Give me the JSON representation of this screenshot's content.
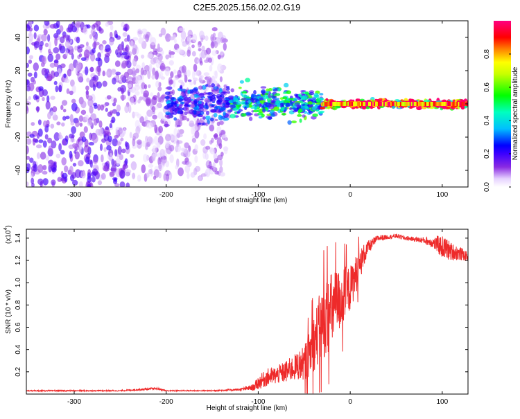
{
  "title": "C2E5.2025.156.02.02.G19",
  "chart_data": [
    {
      "type": "heatmap",
      "xlabel": "Height of straight line (km)",
      "ylabel": "Frequency (Hz)",
      "xlim": [
        -352,
        128
      ],
      "ylim": [
        -50,
        50
      ],
      "xticks": [
        -300,
        -200,
        -100,
        0,
        100
      ],
      "yticks": [
        -40,
        -20,
        0,
        20,
        40
      ],
      "xtick_labels": [
        "-300",
        "-200",
        "-100",
        "0",
        "100"
      ],
      "ytick_labels": [
        "-40",
        "-20",
        "0",
        "20",
        "40"
      ],
      "colorbar": {
        "label": "Normalized spectral amplitude",
        "range": [
          0,
          1
        ],
        "ticks": [
          0.0,
          0.2,
          0.4,
          0.6,
          0.8
        ],
        "tick_labels": [
          "0.0",
          "0.2",
          "0.4",
          "0.6",
          "0.8"
        ],
        "colors": [
          "#ffffff",
          "#e6d2ff",
          "#8a2be2",
          "#3c00ff",
          "#0000ff",
          "#00bfff",
          "#00ffbf",
          "#00ff00",
          "#c8ff00",
          "#ffff00",
          "#ff8000",
          "#ff0000",
          "#ff0080",
          "#ff0060"
        ]
      },
      "description_regions": [
        {
          "x_range": [
            -352,
            -240
          ],
          "spread_hz": 50,
          "amplitude": 0.18
        },
        {
          "x_range": [
            -240,
            -135
          ],
          "spread_hz": 45,
          "amplitude": 0.12
        },
        {
          "x_range": [
            -200,
            -130
          ],
          "spread_hz": 10,
          "amplitude": 0.3
        },
        {
          "x_range": [
            -130,
            -30
          ],
          "spread_hz": 8,
          "amplitude": 0.45
        },
        {
          "x_range": [
            -30,
            128
          ],
          "spread_hz": 2,
          "amplitude": 0.9
        }
      ]
    },
    {
      "type": "line",
      "xlabel": "Height of straight line (km)",
      "ylabel": "SNR (10 * v/v)",
      "yscale_label": "(x10",
      "yscale_exp": "4",
      "xlim": [
        -352,
        128
      ],
      "ylim": [
        0,
        1.48
      ],
      "xticks": [
        -300,
        -200,
        -100,
        0,
        100
      ],
      "yticks": [
        0.2,
        0.4,
        0.6,
        0.8,
        1.0,
        1.2,
        1.4
      ],
      "xtick_labels": [
        "-300",
        "-200",
        "-100",
        "0",
        "100"
      ],
      "ytick_labels": [
        "0.2",
        "0.4",
        "0.6",
        "0.8",
        "1.0",
        "1.2",
        "1.4"
      ],
      "color": "#ee2a2a",
      "x": [
        -352,
        -300,
        -250,
        -210,
        -200,
        -150,
        -120,
        -105,
        -100,
        -90,
        -80,
        -70,
        -60,
        -50,
        -45,
        -40,
        -35,
        -30,
        -25,
        -20,
        -15,
        -10,
        -5,
        0,
        5,
        10,
        15,
        20,
        25,
        30,
        40,
        50,
        60,
        70,
        80,
        90,
        95,
        100,
        105,
        110,
        115,
        120,
        128
      ],
      "y": [
        0.03,
        0.03,
        0.03,
        0.05,
        0.03,
        0.03,
        0.04,
        0.06,
        0.1,
        0.15,
        0.17,
        0.2,
        0.24,
        0.28,
        0.35,
        0.45,
        0.55,
        0.65,
        0.7,
        0.75,
        0.82,
        0.85,
        0.9,
        0.95,
        1.05,
        1.15,
        1.25,
        1.32,
        1.36,
        1.4,
        1.41,
        1.42,
        1.4,
        1.39,
        1.38,
        1.36,
        1.34,
        1.32,
        1.3,
        1.28,
        1.27,
        1.26,
        1.23
      ],
      "noise": [
        0.005,
        0.005,
        0.005,
        0.01,
        0.005,
        0.005,
        0.01,
        0.03,
        0.06,
        0.08,
        0.08,
        0.1,
        0.12,
        0.15,
        0.2,
        0.25,
        0.3,
        0.35,
        0.35,
        0.35,
        0.3,
        0.28,
        0.25,
        0.2,
        0.18,
        0.15,
        0.1,
        0.06,
        0.04,
        0.03,
        0.02,
        0.02,
        0.02,
        0.02,
        0.03,
        0.05,
        0.08,
        0.1,
        0.1,
        0.08,
        0.07,
        0.06,
        0.04
      ]
    }
  ]
}
